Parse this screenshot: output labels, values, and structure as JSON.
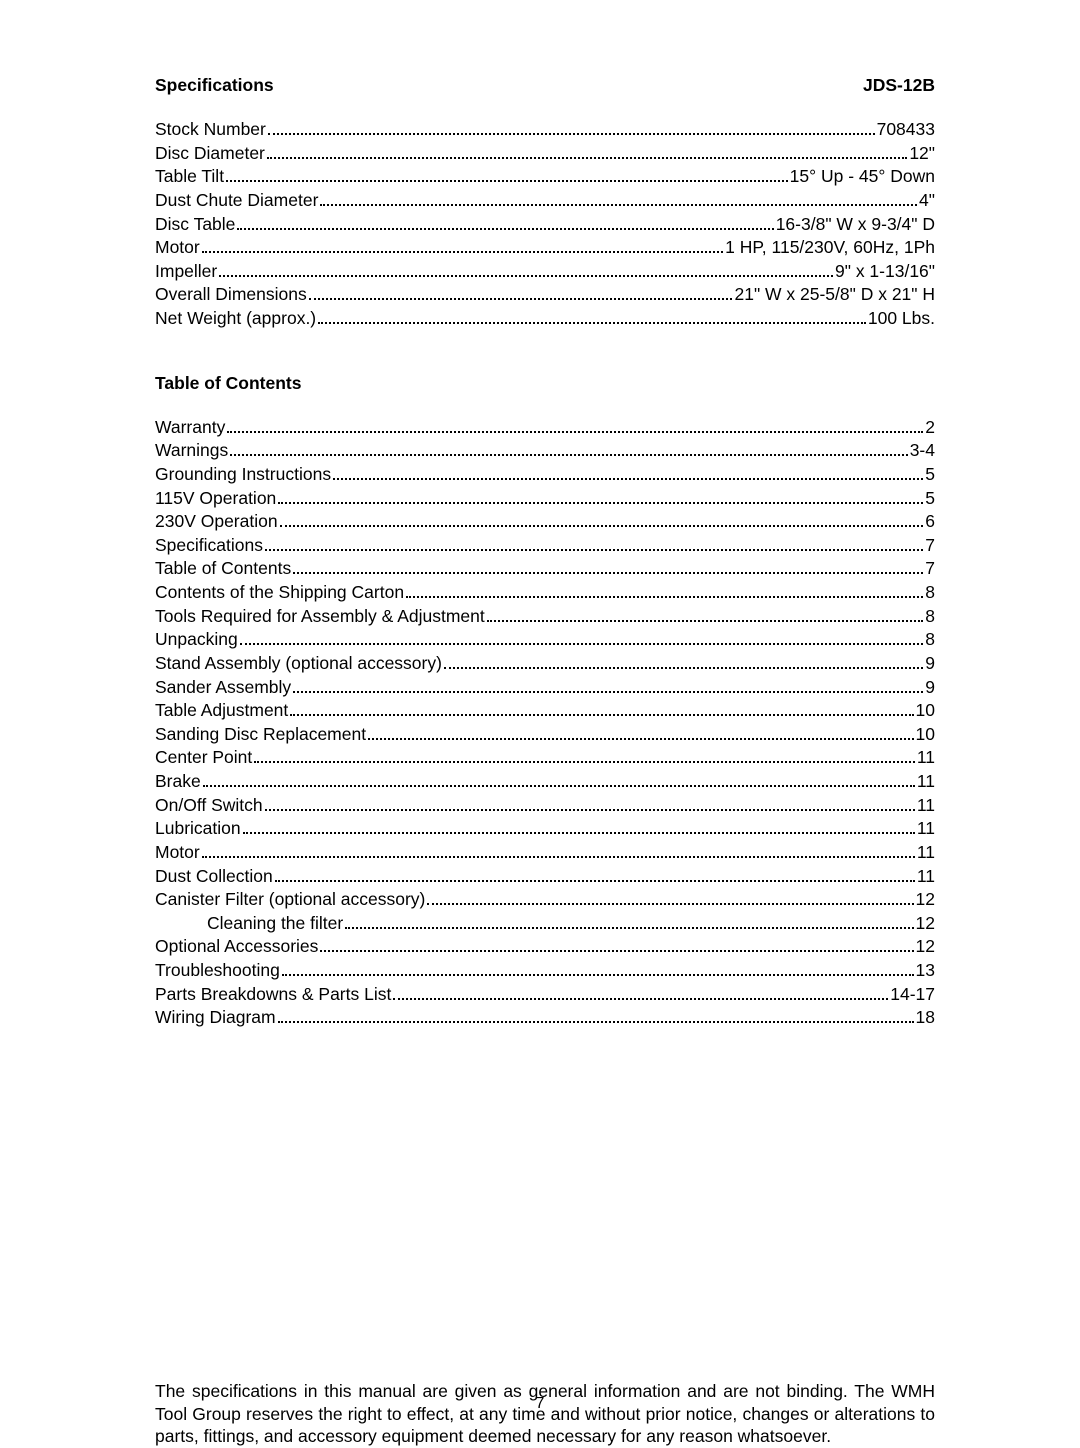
{
  "header": {
    "left": "Specifications",
    "right": "JDS-12B"
  },
  "specifications": [
    {
      "label": "Stock Number",
      "value": "708433"
    },
    {
      "label": "Disc Diameter",
      "value": "12\""
    },
    {
      "label": "Table Tilt",
      "value": "15° Up - 45° Down"
    },
    {
      "label": "Dust Chute Diameter",
      "value": "4\""
    },
    {
      "label": "Disc Table",
      "value": "16-3/8\" W x 9-3/4\" D"
    },
    {
      "label": "Motor",
      "value": "1 HP, 115/230V, 60Hz, 1Ph"
    },
    {
      "label": "Impeller",
      "value": "9\" x 1-13/16\""
    },
    {
      "label": "Overall Dimensions",
      "value": "21\" W x 25-5/8\" D x 21\" H"
    },
    {
      "label": "Net Weight (approx.)",
      "value": "100 Lbs."
    }
  ],
  "toc_heading": "Table of Contents",
  "toc": [
    {
      "label": "Warranty",
      "value": "2",
      "indent": false
    },
    {
      "label": "Warnings",
      "value": "3-4",
      "indent": false
    },
    {
      "label": "Grounding Instructions",
      "value": "5",
      "indent": false
    },
    {
      "label": "115V Operation",
      "value": "5",
      "indent": false
    },
    {
      "label": "230V Operation",
      "value": "6",
      "indent": false
    },
    {
      "label": "Specifications",
      "value": "7",
      "indent": false
    },
    {
      "label": "Table of Contents",
      "value": "7",
      "indent": false
    },
    {
      "label": "Contents of the Shipping Carton",
      "value": "8",
      "indent": false
    },
    {
      "label": "Tools Required for Assembly & Adjustment",
      "value": "8",
      "indent": false
    },
    {
      "label": "Unpacking",
      "value": "8",
      "indent": false
    },
    {
      "label": "Stand Assembly (optional accessory)",
      "value": "9",
      "indent": false
    },
    {
      "label": "Sander Assembly",
      "value": "9",
      "indent": false
    },
    {
      "label": "Table Adjustment",
      "value": "10",
      "indent": false
    },
    {
      "label": "Sanding Disc Replacement",
      "value": "10",
      "indent": false
    },
    {
      "label": "Center Point",
      "value": "11",
      "indent": false
    },
    {
      "label": "Brake",
      "value": "11",
      "indent": false
    },
    {
      "label": "On/Off Switch",
      "value": "11",
      "indent": false
    },
    {
      "label": "Lubrication",
      "value": "11",
      "indent": false
    },
    {
      "label": "Motor",
      "value": "11",
      "indent": false
    },
    {
      "label": "Dust Collection",
      "value": "11",
      "indent": false
    },
    {
      "label": "Canister Filter (optional accessory)",
      "value": "12",
      "indent": false
    },
    {
      "label": "Cleaning the filter",
      "value": "12",
      "indent": true
    },
    {
      "label": "Optional Accessories",
      "value": "12",
      "indent": false
    },
    {
      "label": "Troubleshooting",
      "value": "13",
      "indent": false
    },
    {
      "label": "Parts Breakdowns & Parts List",
      "value": "14-17",
      "indent": false
    },
    {
      "label": "Wiring Diagram",
      "value": "18",
      "indent": false
    }
  ],
  "footer_note": "The specifications in this manual are given as general information and are not binding.  The WMH Tool Group reserves the right to effect, at any time and without prior notice, changes or alterations to parts, fittings, and accessory equipment deemed necessary for any reason whatsoever.",
  "page_number": "7"
}
